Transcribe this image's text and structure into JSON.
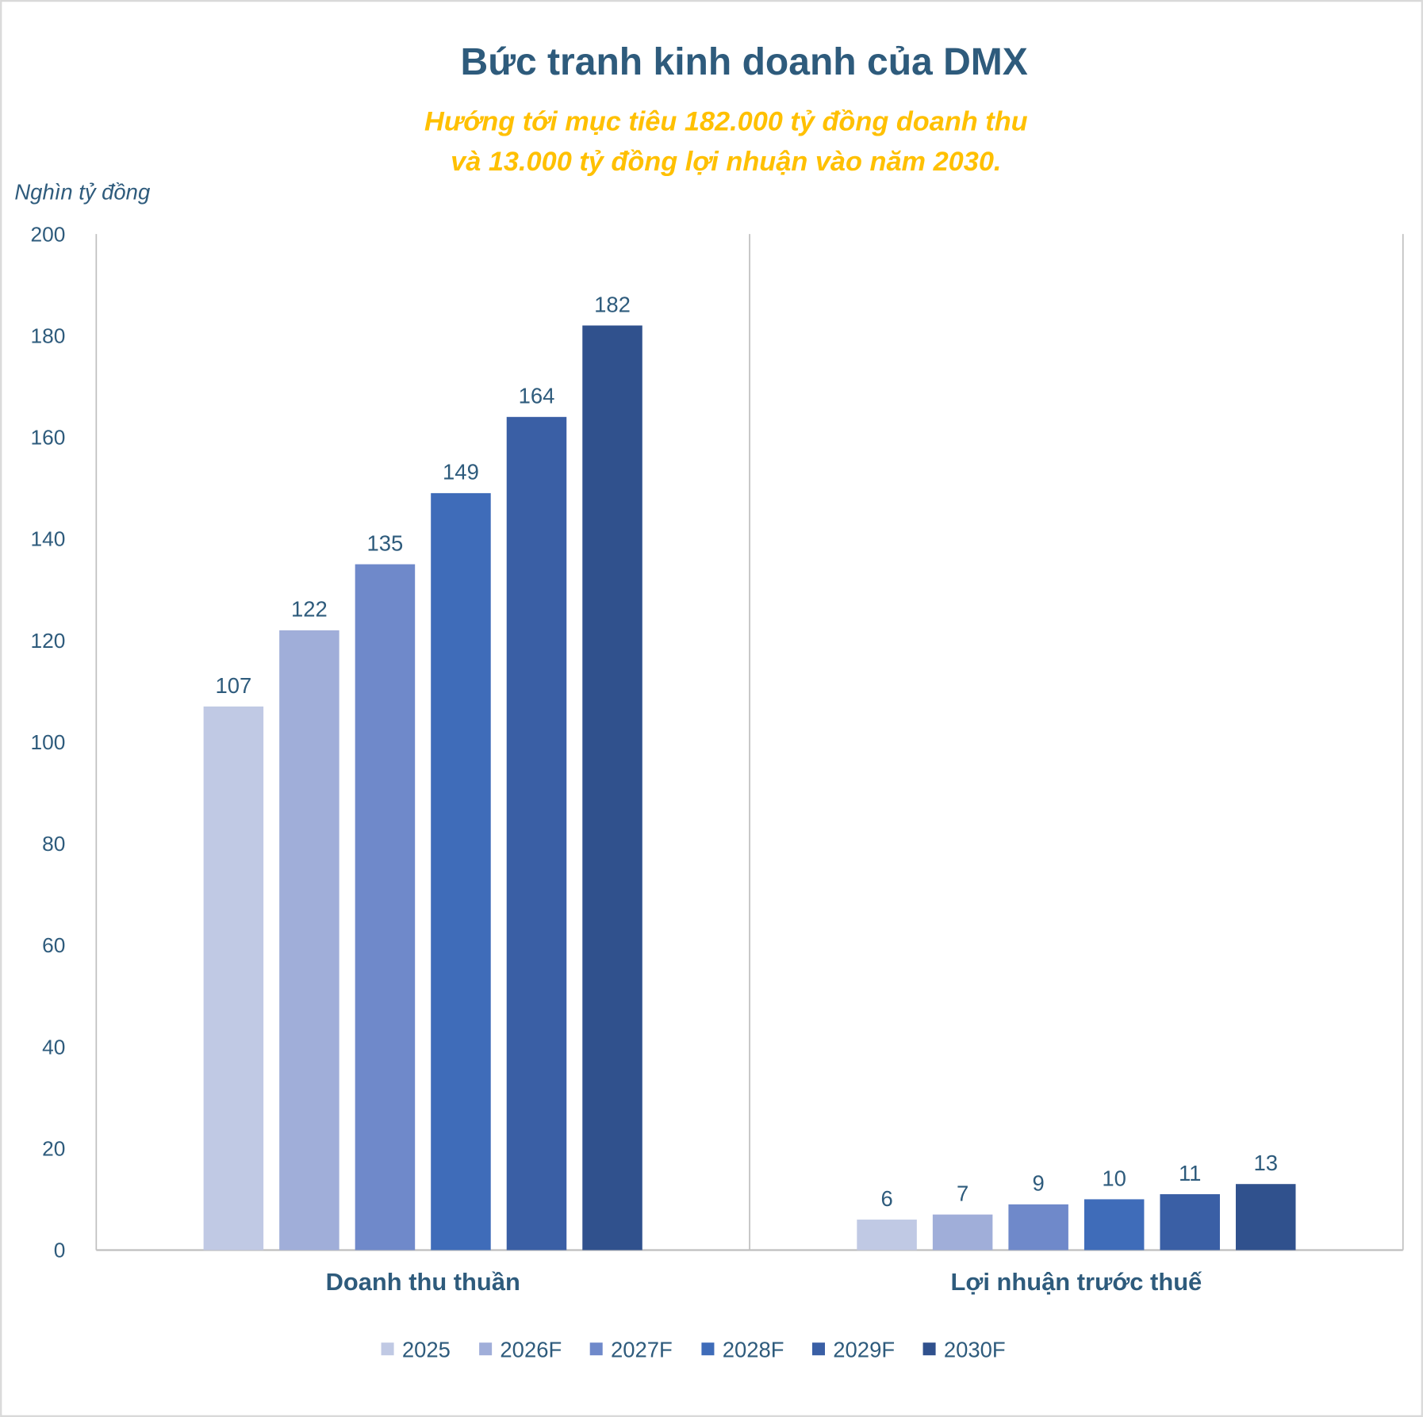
{
  "chart_data": {
    "type": "bar",
    "title": "Bức tranh kinh doanh của DMX",
    "subtitle_lines": [
      "Hướng tới mục tiêu 182.000 tỷ đồng doanh thu",
      "và 13.000 tỷ đồng lợi nhuận vào năm 2030."
    ],
    "ylabel": "Nghìn tỷ đồng",
    "ylim": [
      0,
      200
    ],
    "yticks": [
      0,
      20,
      40,
      60,
      80,
      100,
      120,
      140,
      160,
      180,
      200
    ],
    "categories": [
      "Doanh thu thuần",
      "Lợi nhuận trước thuế"
    ],
    "series": [
      {
        "name": "2025",
        "values": [
          107,
          6
        ],
        "color": "#C0C9E4"
      },
      {
        "name": "2026F",
        "values": [
          122,
          7
        ],
        "color": "#A0AED9"
      },
      {
        "name": "2027F",
        "values": [
          135,
          9
        ],
        "color": "#6F89CA"
      },
      {
        "name": "2028F",
        "values": [
          149,
          10
        ],
        "color": "#3F6CB9"
      },
      {
        "name": "2029F",
        "values": [
          164,
          11
        ],
        "color": "#3A5FA5"
      },
      {
        "name": "2030F",
        "values": [
          182,
          13
        ],
        "color": "#30518D"
      }
    ],
    "grid": false,
    "legend": "bottom",
    "data_labels": true
  }
}
